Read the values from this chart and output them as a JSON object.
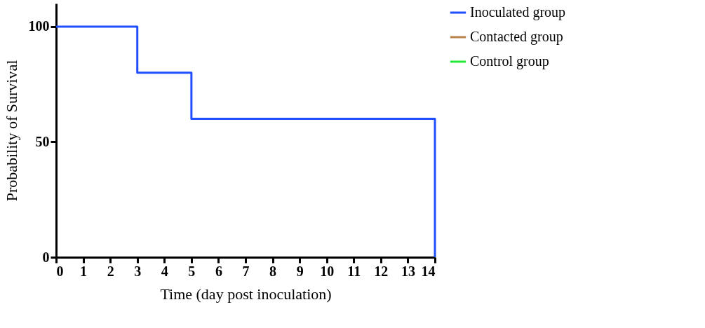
{
  "chart_data": {
    "type": "step",
    "xlabel": "Time (day post inoculation)",
    "ylabel": "Probability of Survival",
    "x": [
      0,
      3,
      5,
      14
    ],
    "series": [
      {
        "name": "Inoculated group",
        "color": "#1f4fff",
        "values": [
          100,
          80,
          60,
          0
        ]
      },
      {
        "name": "Contacted group",
        "color": "#b8824a",
        "values": [
          null,
          null,
          null,
          null
        ]
      },
      {
        "name": "Control group",
        "color": "#22e83a",
        "values": [
          null,
          null,
          null,
          null
        ]
      }
    ],
    "xlim": [
      0,
      14
    ],
    "xticks": [
      0,
      1,
      2,
      3,
      4,
      5,
      6,
      7,
      8,
      9,
      10,
      11,
      12,
      13,
      14
    ],
    "ylim": [
      0,
      110
    ],
    "yticks": [
      0,
      50,
      100
    ],
    "grid": false,
    "legend": "top right",
    "marker": "none",
    "line_style": "solid"
  }
}
